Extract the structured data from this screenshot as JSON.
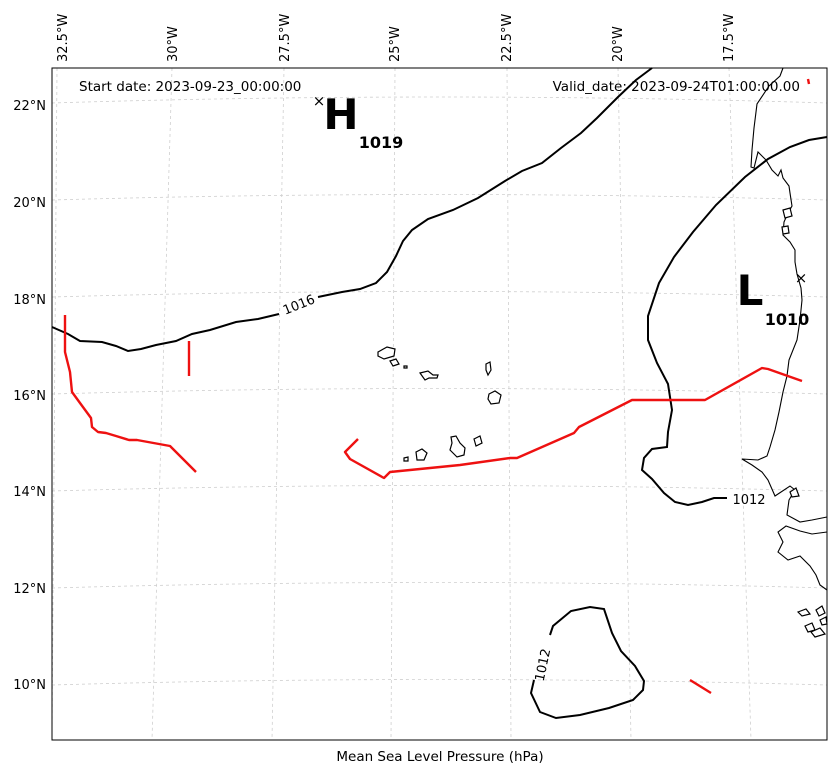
{
  "map": {
    "start_date": "Start date: 2023-09-23_00:00:00",
    "valid_date": "Valid_date: 2023-09-24T01:00:00.00",
    "caption": "Mean Sea Level Pressure (hPa)",
    "longitude_labels": [
      "32.5°W",
      "30°W",
      "27.5°W",
      "25°W",
      "22.5°W",
      "20°W",
      "17.5°W"
    ],
    "latitude_labels": [
      "22°N",
      "20°N",
      "18°N",
      "16°N",
      "14°N",
      "12°N",
      "10°N"
    ],
    "pressure_centers": [
      {
        "type": "H",
        "value": "1019",
        "lon": -26.4,
        "lat": 22.2
      },
      {
        "type": "L",
        "value": "1010",
        "lon": -16.3,
        "lat": 18.5
      }
    ],
    "isobar_labels": [
      "1016",
      "1012",
      "1012"
    ],
    "colors": {
      "isobar": "#000000",
      "front": "#ee1111",
      "grid": "#cfcfcf"
    },
    "gridlines": true
  }
}
